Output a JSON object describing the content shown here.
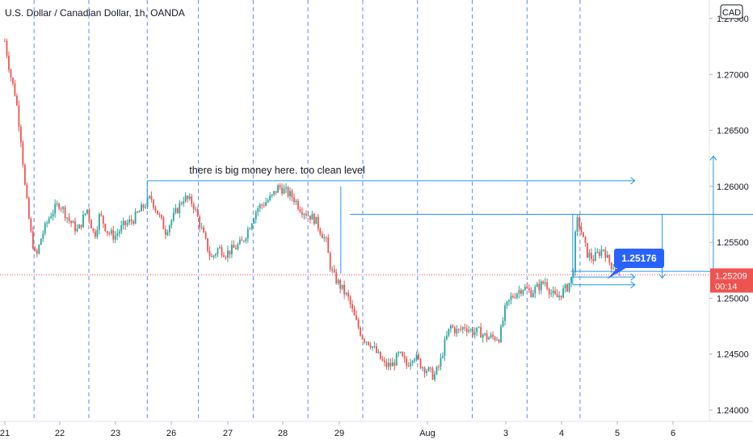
{
  "header": {
    "title": "U.S. Dollar / Canadian Dollar, 1h, OANDA"
  },
  "price_scale": {
    "currency_badge": "CAD"
  },
  "annotations": {
    "note": "there is big money here.  too clean level",
    "callout_price": "1.25176"
  },
  "last_price": {
    "value": "1.25209",
    "countdown": "00:14"
  },
  "colors": {
    "up": "#26a69a",
    "down": "#ef5350",
    "drawing": "#2196f3",
    "session_line": "#2962ff",
    "last_price": "#ef5350",
    "callout_bg": "#2962ff"
  },
  "chart_data": {
    "type": "candlestick",
    "title": "U.S. Dollar / Canadian Dollar, 1h, OANDA",
    "y_tick_labels": [
      "1.27500",
      "1.27000",
      "1.26500",
      "1.26000",
      "1.25500",
      "1.25000",
      "1.24500",
      "1.24000"
    ],
    "x_tick_labels": [
      "21",
      "22",
      "23",
      "26",
      "27",
      "28",
      "29",
      "Aug",
      "3",
      "4",
      "5",
      "6"
    ],
    "ylim": [
      1.2385,
      1.2768
    ],
    "last_price": 1.25209,
    "path": [
      [
        0,
        1.273
      ],
      [
        0.3,
        1.27
      ],
      [
        0.6,
        1.268
      ],
      [
        0.9,
        1.264
      ],
      [
        1.1,
        1.26
      ],
      [
        1.4,
        1.256
      ],
      [
        1.7,
        1.2535
      ],
      [
        2.0,
        1.2555
      ],
      [
        2.5,
        1.2575
      ],
      [
        3.0,
        1.2585
      ],
      [
        3.5,
        1.257
      ],
      [
        4.0,
        1.256
      ],
      [
        4.5,
        1.258
      ],
      [
        4.9,
        1.2555
      ],
      [
        5.2,
        1.2575
      ],
      [
        5.6,
        1.256
      ],
      [
        6.0,
        1.2555
      ],
      [
        6.5,
        1.2565
      ],
      [
        7.0,
        1.257
      ],
      [
        7.5,
        1.258
      ],
      [
        8.0,
        1.259
      ],
      [
        8.4,
        1.2575
      ],
      [
        8.8,
        1.256
      ],
      [
        9.3,
        1.2575
      ],
      [
        9.8,
        1.259
      ],
      [
        10.3,
        1.2585
      ],
      [
        10.8,
        1.256
      ],
      [
        11.3,
        1.2535
      ],
      [
        11.7,
        1.2545
      ],
      [
        12.1,
        1.254
      ],
      [
        12.6,
        1.2545
      ],
      [
        13.0,
        1.255
      ],
      [
        13.4,
        1.2565
      ],
      [
        13.8,
        1.258
      ],
      [
        14.2,
        1.2585
      ],
      [
        14.6,
        1.259
      ],
      [
        15.0,
        1.26
      ],
      [
        15.4,
        1.2595
      ],
      [
        15.8,
        1.259
      ],
      [
        16.2,
        1.258
      ],
      [
        16.6,
        1.2575
      ],
      [
        17.0,
        1.257
      ],
      [
        17.3,
        1.256
      ],
      [
        17.6,
        1.255
      ],
      [
        17.8,
        1.253
      ],
      [
        18.0,
        1.252
      ],
      [
        18.4,
        1.251
      ],
      [
        18.8,
        1.25
      ],
      [
        19.2,
        1.248
      ],
      [
        19.6,
        1.2465
      ],
      [
        20.0,
        1.246
      ],
      [
        20.4,
        1.245
      ],
      [
        20.8,
        1.244
      ],
      [
        21.2,
        1.244
      ],
      [
        21.6,
        1.245
      ],
      [
        22.0,
        1.244
      ],
      [
        22.4,
        1.245
      ],
      [
        22.8,
        1.244
      ],
      [
        23.2,
        1.2435
      ],
      [
        23.5,
        1.243
      ],
      [
        23.8,
        1.244
      ],
      [
        24.1,
        1.246
      ],
      [
        24.4,
        1.2475
      ],
      [
        24.8,
        1.247
      ],
      [
        25.2,
        1.2475
      ],
      [
        25.6,
        1.247
      ],
      [
        26.0,
        1.247
      ],
      [
        26.4,
        1.2465
      ],
      [
        26.8,
        1.2465
      ],
      [
        27.1,
        1.2465
      ],
      [
        27.4,
        1.249
      ],
      [
        27.7,
        1.25
      ],
      [
        28.0,
        1.2505
      ],
      [
        28.4,
        1.251
      ],
      [
        28.8,
        1.2505
      ],
      [
        29.2,
        1.251
      ],
      [
        29.6,
        1.2515
      ],
      [
        29.9,
        1.2505
      ],
      [
        30.2,
        1.25
      ],
      [
        30.5,
        1.2505
      ],
      [
        30.8,
        1.251
      ],
      [
        31.1,
        1.252
      ],
      [
        31.3,
        1.257
      ],
      [
        31.5,
        1.2565
      ],
      [
        31.7,
        1.255
      ],
      [
        31.9,
        1.254
      ],
      [
        32.2,
        1.2535
      ],
      [
        32.5,
        1.254
      ],
      [
        32.8,
        1.2545
      ],
      [
        33.0,
        1.2535
      ],
      [
        33.2,
        1.253
      ],
      [
        33.4,
        1.2528
      ],
      [
        33.6,
        1.2522
      ],
      [
        33.7,
        1.25209
      ]
    ],
    "levels": [
      {
        "from_day": 7.8,
        "to_day": 34.5,
        "price": 1.2605
      },
      {
        "from_day": 18.9,
        "to_day": 42.5,
        "price": 1.2575
      },
      {
        "from_day": 31.0,
        "to_day": 41.5,
        "price": 1.2524
      },
      {
        "from_day": 31.1,
        "to_day": 34.5,
        "price": 1.2519
      },
      {
        "from_day": 31.1,
        "to_day": 34.5,
        "price": 1.2512
      }
    ],
    "vertical_ticks": [
      {
        "day": 7.8,
        "from": 1.2605,
        "to": 1.2585
      },
      {
        "day": 18.4,
        "from": 1.26,
        "to": 1.2522
      },
      {
        "day": 31.1,
        "from": 1.2575,
        "to": 1.2512
      }
    ],
    "target_arrows": [
      {
        "day": 36.0,
        "from": 1.2575,
        "to": 1.2518
      },
      {
        "day": 38.8,
        "from": 1.252,
        "to": 1.2627
      }
    ],
    "callout_price_value": 1.25176
  }
}
